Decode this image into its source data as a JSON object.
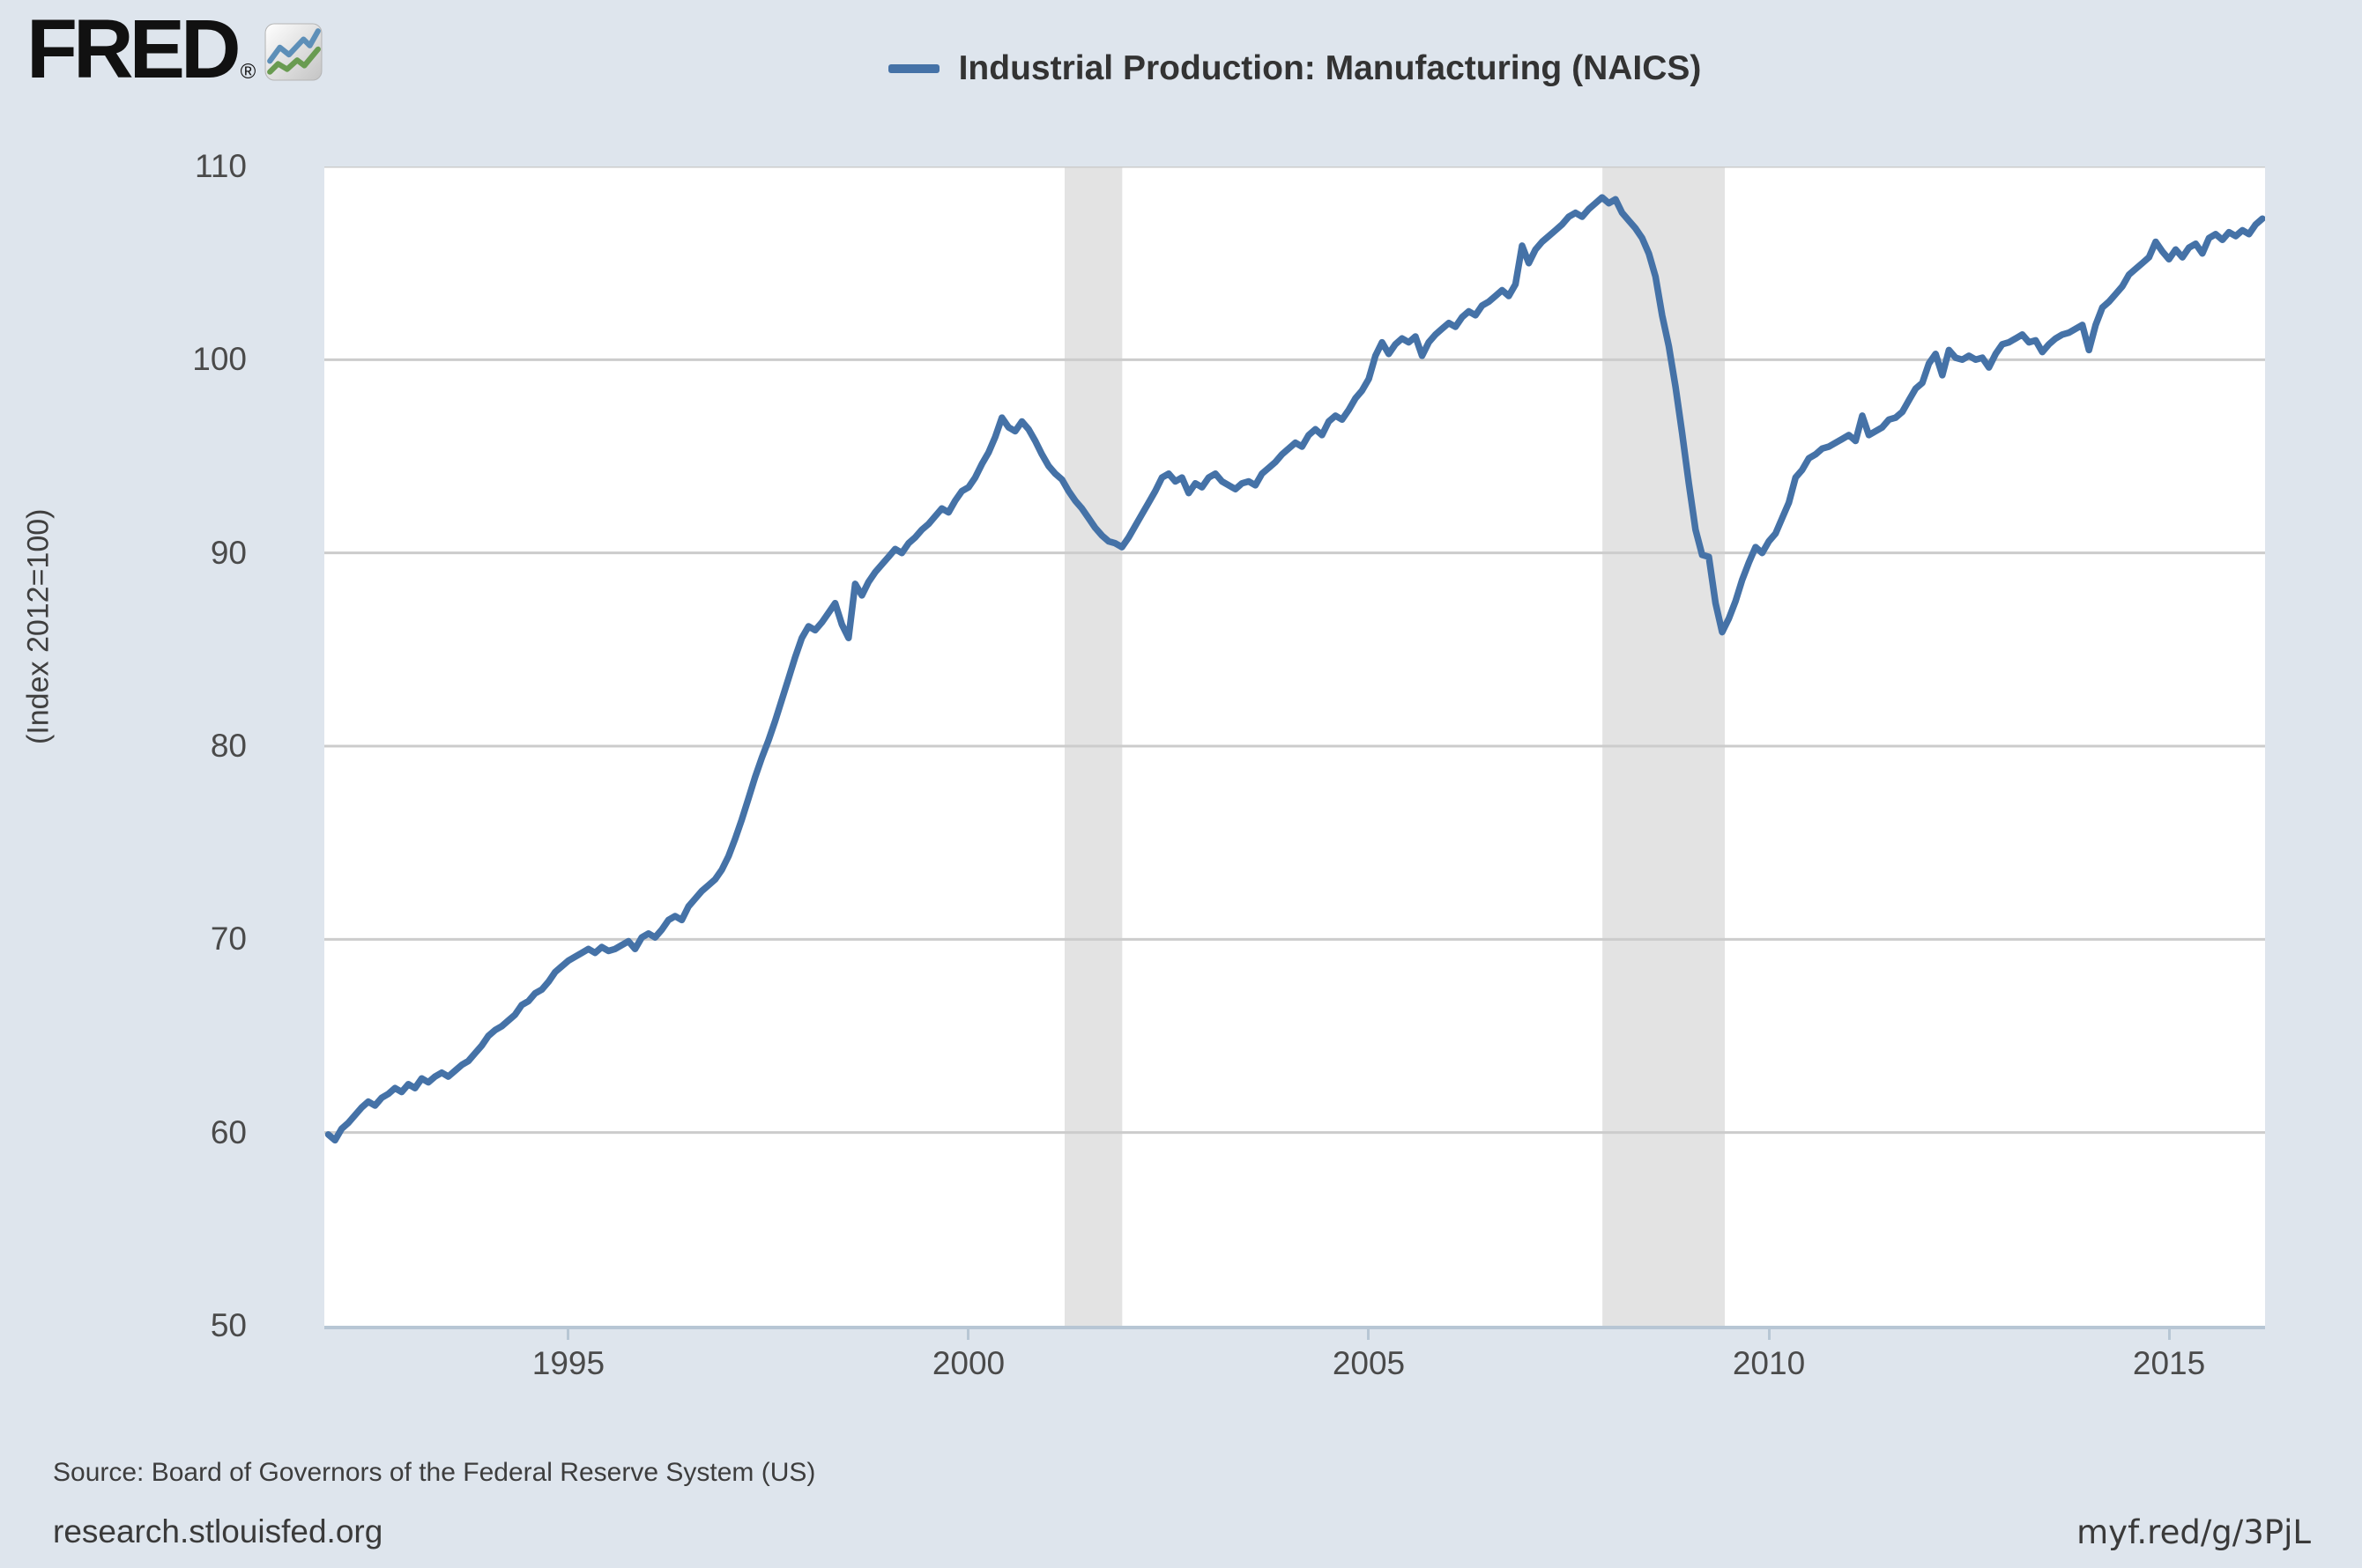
{
  "header": {
    "logo_text": "FRED",
    "logo_registered": "®",
    "legend_label": "Industrial Production: Manufacturing (NAICS)"
  },
  "footer": {
    "source": "Source: Board of Governors of the Federal Reserve System (US)",
    "site": "research.stlouisfed.org",
    "short_url": "myf.red/g/3PjL"
  },
  "chart_data": {
    "type": "line",
    "title": "Industrial Production: Manufacturing (NAICS)",
    "ylabel": "(Index 2012=100)",
    "xlabel": "",
    "y_domain": [
      50,
      110
    ],
    "x_domain": [
      1991.95,
      2016.2
    ],
    "y_ticks": [
      50,
      60,
      70,
      80,
      90,
      100,
      110
    ],
    "x_ticks": [
      1995,
      2000,
      2005,
      2010,
      2015
    ],
    "grid": "horizontal",
    "legend_position": "top-center",
    "recession_bands": [
      [
        2001.2,
        2001.92
      ],
      [
        2007.92,
        2009.45
      ]
    ],
    "colors": {
      "line": "#4572a7",
      "recession_band": "#e3e3e3",
      "grid": "#cccccc",
      "axis": "#b7c6d4",
      "plot_bg": "#ffffff",
      "page_bg": "#dee5ed",
      "tick_text": "#4a4a4a",
      "title_text": "#333333"
    },
    "series": [
      {
        "name": "Industrial Production: Manufacturing (NAICS)",
        "frequency": "monthly",
        "start_year": 1992,
        "start_month": 1,
        "end_label": "2016-03",
        "values": [
          59.9,
          59.6,
          60.2,
          60.5,
          60.9,
          61.3,
          61.6,
          61.4,
          61.8,
          62.0,
          62.3,
          62.1,
          62.5,
          62.3,
          62.8,
          62.6,
          62.9,
          63.1,
          62.9,
          63.2,
          63.5,
          63.7,
          64.1,
          64.5,
          65.0,
          65.3,
          65.5,
          65.8,
          66.1,
          66.6,
          66.8,
          67.2,
          67.4,
          67.8,
          68.3,
          68.6,
          68.9,
          69.1,
          69.3,
          69.5,
          69.3,
          69.6,
          69.4,
          69.5,
          69.7,
          69.9,
          69.5,
          70.1,
          70.3,
          70.1,
          70.5,
          71.0,
          71.2,
          71.0,
          71.7,
          72.1,
          72.5,
          72.8,
          73.1,
          73.6,
          74.3,
          75.2,
          76.2,
          77.3,
          78.4,
          79.4,
          80.3,
          81.3,
          82.4,
          83.5,
          84.6,
          85.6,
          86.2,
          86.0,
          86.4,
          86.9,
          87.4,
          86.3,
          85.6,
          88.4,
          87.8,
          88.5,
          89.0,
          89.4,
          89.8,
          90.2,
          90.0,
          90.5,
          90.8,
          91.2,
          91.5,
          91.9,
          92.3,
          92.1,
          92.7,
          93.2,
          93.4,
          93.9,
          94.6,
          95.2,
          96.0,
          97.0,
          96.5,
          96.3,
          96.8,
          96.4,
          95.8,
          95.1,
          94.5,
          94.1,
          93.8,
          93.2,
          92.7,
          92.3,
          91.8,
          91.3,
          90.9,
          90.6,
          90.5,
          90.3,
          90.8,
          91.4,
          92.0,
          92.6,
          93.2,
          93.9,
          94.1,
          93.7,
          93.9,
          93.1,
          93.6,
          93.4,
          93.9,
          94.1,
          93.7,
          93.5,
          93.3,
          93.6,
          93.7,
          93.5,
          94.1,
          94.4,
          94.7,
          95.1,
          95.4,
          95.7,
          95.5,
          96.1,
          96.4,
          96.1,
          96.8,
          97.1,
          96.9,
          97.4,
          98.0,
          98.4,
          99.0,
          100.2,
          100.9,
          100.3,
          100.8,
          101.1,
          100.9,
          101.2,
          100.2,
          100.9,
          101.3,
          101.6,
          101.9,
          101.7,
          102.2,
          102.5,
          102.3,
          102.8,
          103.0,
          103.3,
          103.6,
          103.3,
          103.9,
          105.9,
          105.0,
          105.7,
          106.1,
          106.4,
          106.7,
          107.0,
          107.4,
          107.6,
          107.4,
          107.8,
          108.1,
          108.4,
          108.1,
          108.3,
          107.6,
          107.2,
          106.8,
          106.3,
          105.5,
          104.3,
          102.3,
          100.7,
          98.6,
          96.2,
          93.6,
          91.2,
          89.9,
          89.8,
          87.4,
          85.9,
          86.6,
          87.5,
          88.6,
          89.5,
          90.3,
          90.0,
          90.6,
          91.0,
          91.8,
          92.6,
          93.9,
          94.3,
          94.9,
          95.1,
          95.4,
          95.5,
          95.7,
          95.9,
          96.1,
          95.8,
          97.1,
          96.1,
          96.3,
          96.5,
          96.9,
          97.0,
          97.3,
          97.9,
          98.5,
          98.8,
          99.8,
          100.3,
          99.2,
          100.5,
          100.1,
          100.0,
          100.2,
          100.0,
          100.1,
          99.6,
          100.3,
          100.8,
          100.9,
          101.1,
          101.3,
          100.9,
          101.0,
          100.4,
          100.8,
          101.1,
          101.3,
          101.4,
          101.6,
          101.8,
          100.5,
          101.8,
          102.7,
          103.0,
          103.4,
          103.8,
          104.4,
          104.7,
          105.0,
          105.3,
          106.1,
          105.6,
          105.2,
          105.7,
          105.3,
          105.8,
          106.0,
          105.5,
          106.3,
          106.5,
          106.2,
          106.6,
          106.4,
          106.7,
          106.5,
          107.0,
          107.3
        ]
      }
    ]
  }
}
